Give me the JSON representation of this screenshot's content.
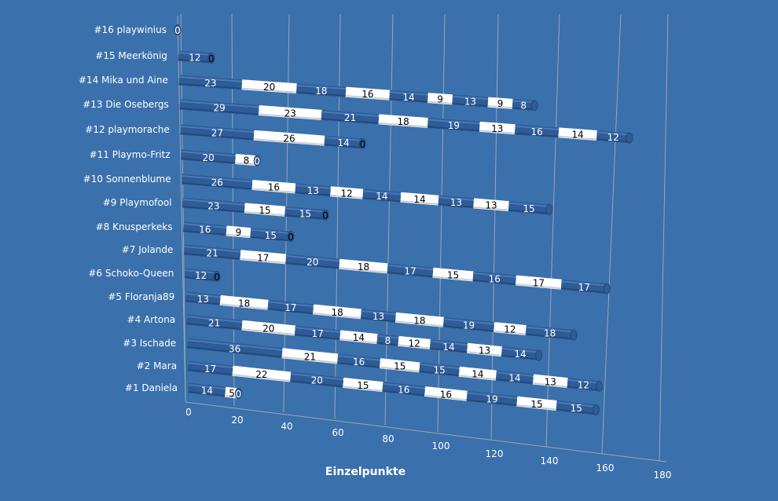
{
  "chart_data": {
    "type": "bar",
    "orientation": "horizontal-3d-stacked",
    "xlabel": "Einzelpunkte",
    "xlim": [
      0,
      180
    ],
    "xticks": [
      "0",
      "20",
      "40",
      "60",
      "80",
      "100",
      "120",
      "140",
      "160",
      "180"
    ],
    "grid": true,
    "categories": [
      "#1 Daniela",
      "#2 Mara",
      "#3 Ischade",
      "#4 Artona",
      "#5 Floranja89",
      "#6 Schoko-Queen",
      "#7 Jolande",
      "#8 Knusperkeks",
      "#9 Playmofool",
      "#10 Sonnenblume",
      "#11 Playmo-Fritz",
      "#12 playmorache",
      "#13 Die Osebergs",
      "#14 Mika und Aine",
      "#15 Meerkönig",
      "#16 playwinius"
    ],
    "rows": [
      [
        14,
        5,
        0
      ],
      [
        17,
        22,
        20,
        15,
        16,
        16,
        19,
        15,
        15
      ],
      [
        36,
        21,
        16,
        15,
        15,
        14,
        14,
        13,
        12
      ],
      [
        21,
        20,
        17,
        14,
        8,
        12,
        14,
        13,
        14
      ],
      [
        13,
        18,
        17,
        18,
        13,
        18,
        19,
        12,
        18
      ],
      [
        12,
        0
      ],
      [
        21,
        17,
        20,
        18,
        17,
        15,
        16,
        17,
        17
      ],
      [
        16,
        9,
        15,
        0
      ],
      [
        23,
        15,
        15,
        0
      ],
      [
        26,
        16,
        13,
        12,
        14,
        14,
        13,
        13,
        15
      ],
      [
        20,
        8,
        0
      ],
      [
        27,
        26,
        14,
        0
      ],
      [
        29,
        23,
        21,
        18,
        19,
        13,
        16,
        14,
        12
      ],
      [
        23,
        20,
        18,
        16,
        14,
        9,
        13,
        9,
        8
      ],
      [
        12,
        0
      ],
      [
        0
      ]
    ],
    "colors": {
      "dark": "#2e5c98",
      "light": "#ffffff",
      "background": "#3a70ab"
    }
  }
}
